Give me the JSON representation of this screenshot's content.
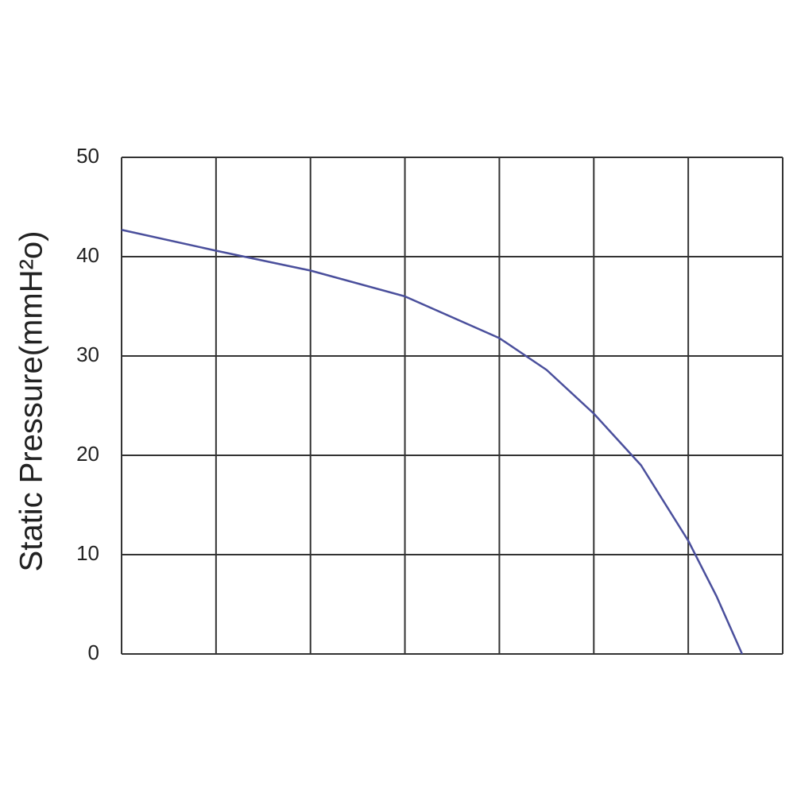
{
  "chart_data": {
    "type": "line",
    "y_label": "Static Pressure(mmH²o)",
    "x": [
      0,
      1,
      2,
      3,
      4,
      4.5,
      5,
      5.5,
      6,
      6.3,
      6.57
    ],
    "series": [
      {
        "color": "#4a4f9c",
        "values": [
          42.7,
          40.6,
          38.6,
          36,
          31.8,
          28.6,
          24.2,
          19,
          11.4,
          5.8,
          0
        ]
      }
    ],
    "xlim": [
      0,
      7
    ],
    "xticks": [
      0,
      1,
      2,
      3,
      4,
      5,
      6,
      7
    ],
    "ylim": [
      0,
      50
    ],
    "yticks": [
      0,
      10,
      20,
      30,
      40,
      50
    ],
    "grid": true
  }
}
